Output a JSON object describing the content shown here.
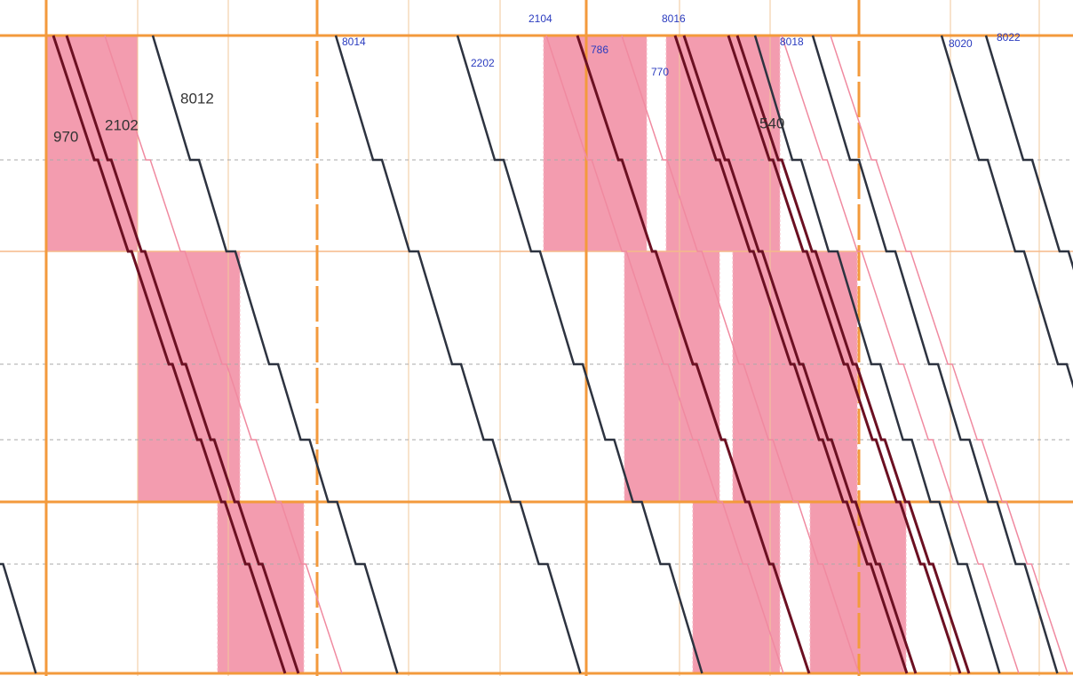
{
  "train_labels": [
    "970",
    "2102",
    "8012",
    "8014",
    "2202",
    "2104",
    "786",
    "8016",
    "770",
    "8018",
    "540",
    "8020",
    "8022"
  ]
}
